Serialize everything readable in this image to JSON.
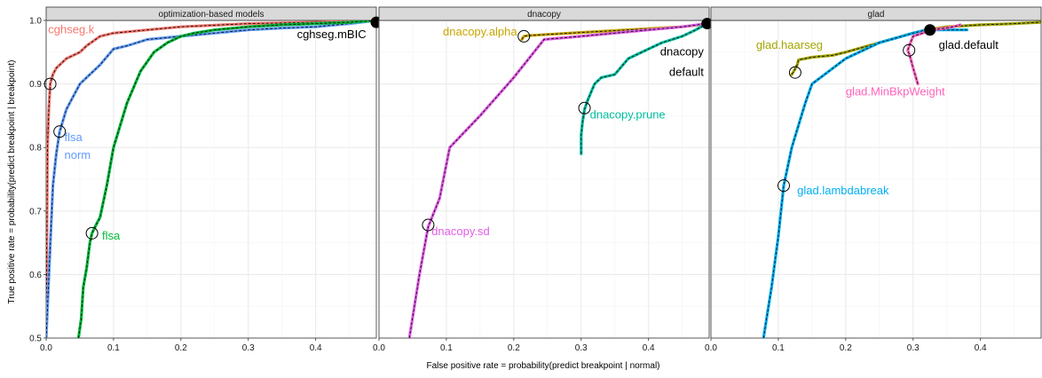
{
  "chart_data": {
    "type": "line",
    "xlabel": "False positive rate = probability(predict breakpoint | normal)",
    "ylabel": "True positive rate = probability(predict breakpoint | breakpoint)",
    "xlim": [
      0,
      0.49
    ],
    "ylim": [
      0.5,
      1.0
    ],
    "x_ticks": [
      "0.0",
      "0.1",
      "0.2",
      "0.3",
      "0.4"
    ],
    "y_ticks": [
      "0.5",
      "0.6",
      "0.7",
      "0.8",
      "0.9",
      "1.0"
    ],
    "grid": true,
    "background_color": "#ffffff",
    "grid_color": "#ebebeb",
    "strip_color": "#d9d9d9",
    "panels": [
      {
        "title": "optimization-based models",
        "series": [
          {
            "label": "cghseg.k",
            "color": "#f8766d",
            "x": [
              0.0,
              0.002,
              0.004,
              0.006,
              0.01,
              0.015,
              0.02,
              0.03,
              0.04,
              0.05,
              0.06,
              0.08,
              0.1,
              0.15,
              0.2,
              0.3,
              0.4,
              0.49
            ],
            "y": [
              0.5,
              0.8,
              0.86,
              0.9,
              0.915,
              0.925,
              0.93,
              0.94,
              0.945,
              0.95,
              0.96,
              0.975,
              0.98,
              0.985,
              0.99,
              0.995,
              0.997,
              1.0
            ],
            "point": {
              "x": 0.006,
              "y": 0.9
            },
            "label_pos": {
              "x": 0.003,
              "y": 0.98
            },
            "label_anchor": "start"
          },
          {
            "label": "flsa\nnorm",
            "color": "#619cff",
            "x": [
              0.0,
              0.005,
              0.01,
              0.015,
              0.02,
              0.03,
              0.04,
              0.05,
              0.06,
              0.08,
              0.1,
              0.12,
              0.15,
              0.2,
              0.25,
              0.3,
              0.35,
              0.4,
              0.45,
              0.49
            ],
            "y": [
              0.5,
              0.62,
              0.74,
              0.79,
              0.825,
              0.86,
              0.88,
              0.9,
              0.91,
              0.93,
              0.955,
              0.96,
              0.97,
              0.975,
              0.98,
              0.985,
              0.988,
              0.99,
              0.995,
              1.0
            ],
            "point": {
              "x": 0.02,
              "y": 0.825
            },
            "label_pos": {
              "x": 0.027,
              "y": 0.81
            },
            "label_anchor": "start"
          },
          {
            "label": "flsa",
            "color": "#00ba38",
            "x": [
              0.048,
              0.052,
              0.055,
              0.06,
              0.065,
              0.068,
              0.075,
              0.08,
              0.09,
              0.1,
              0.12,
              0.14,
              0.16,
              0.18,
              0.2,
              0.22,
              0.25,
              0.3,
              0.35,
              0.4,
              0.45,
              0.49
            ],
            "y": [
              0.5,
              0.53,
              0.58,
              0.61,
              0.65,
              0.665,
              0.68,
              0.69,
              0.74,
              0.8,
              0.87,
              0.92,
              0.95,
              0.965,
              0.975,
              0.98,
              0.985,
              0.99,
              0.993,
              0.995,
              0.997,
              1.0
            ],
            "point": {
              "x": 0.068,
              "y": 0.665
            },
            "label_pos": {
              "x": 0.083,
              "y": 0.655
            },
            "label_anchor": "start"
          }
        ],
        "default_point": {
          "x": 0.49,
          "y": 0.997
        },
        "default_label": "cghseg.mBIC",
        "default_label_pos": {
          "x": 0.475,
          "y": 0.972
        },
        "default_label_anchor": "end"
      },
      {
        "title": "dnacopy",
        "series": [
          {
            "label": "dnacopy.alpha",
            "color": "#c8a600",
            "x": [
              0.212,
              0.215,
              0.22,
              0.25,
              0.3,
              0.35,
              0.4,
              0.45,
              0.475,
              0.487
            ],
            "y": [
              0.97,
              0.975,
              0.976,
              0.978,
              0.981,
              0.984,
              0.987,
              0.99,
              0.993,
              0.995
            ],
            "point": {
              "x": 0.215,
              "y": 0.975
            },
            "label_pos": {
              "x": 0.205,
              "y": 0.976
            },
            "label_anchor": "end"
          },
          {
            "label": "dnacopy.sd",
            "color": "#e35de8",
            "x": [
              0.045,
              0.06,
              0.073,
              0.09,
              0.105,
              0.15,
              0.2,
              0.245,
              0.3,
              0.35,
              0.4,
              0.45,
              0.487
            ],
            "y": [
              0.5,
              0.6,
              0.675,
              0.72,
              0.8,
              0.85,
              0.91,
              0.97,
              0.975,
              0.98,
              0.985,
              0.99,
              0.995
            ],
            "point": {
              "x": 0.073,
              "y": 0.678
            },
            "label_pos": {
              "x": 0.078,
              "y": 0.662
            },
            "label_anchor": "start"
          },
          {
            "label": "dnacopy.prune",
            "color": "#00bfa0",
            "x": [
              0.3,
              0.3,
              0.302,
              0.305,
              0.31,
              0.32,
              0.33,
              0.35,
              0.37,
              0.4,
              0.42,
              0.45,
              0.47,
              0.487
            ],
            "y": [
              0.79,
              0.82,
              0.84,
              0.86,
              0.875,
              0.9,
              0.91,
              0.915,
              0.94,
              0.955,
              0.965,
              0.975,
              0.985,
              0.995
            ],
            "point": {
              "x": 0.305,
              "y": 0.862
            },
            "label_pos": {
              "x": 0.313,
              "y": 0.846
            },
            "label_anchor": "start"
          }
        ],
        "default_point": {
          "x": 0.487,
          "y": 0.995
        },
        "default_label": "dnacopy\ndefault",
        "default_label_pos": {
          "x": 0.482,
          "y": 0.945
        },
        "default_label_anchor": "end"
      },
      {
        "title": "glad",
        "series": [
          {
            "label": "glad.haarseg",
            "color": "#a3a500",
            "x": [
              0.12,
              0.123,
              0.128,
              0.13,
              0.14,
              0.15,
              0.18,
              0.2,
              0.25,
              0.3,
              0.32,
              0.35,
              0.4,
              0.45,
              0.49
            ],
            "y": [
              0.915,
              0.92,
              0.93,
              0.938,
              0.94,
              0.942,
              0.945,
              0.95,
              0.965,
              0.98,
              0.985,
              0.99,
              0.993,
              0.995,
              0.997
            ],
            "point": {
              "x": 0.125,
              "y": 0.918
            },
            "label_pos": {
              "x": 0.067,
              "y": 0.955
            },
            "label_anchor": "start"
          },
          {
            "label": "glad.lambdabreak",
            "color": "#00b0f6",
            "x": [
              0.078,
              0.09,
              0.1,
              0.108,
              0.12,
              0.14,
              0.15,
              0.2,
              0.25,
              0.3,
              0.32,
              0.36,
              0.38
            ],
            "y": [
              0.5,
              0.58,
              0.66,
              0.74,
              0.8,
              0.87,
              0.9,
              0.94,
              0.965,
              0.98,
              0.985,
              0.985,
              0.985
            ],
            "point": {
              "x": 0.108,
              "y": 0.74
            },
            "label_pos": {
              "x": 0.128,
              "y": 0.726
            },
            "label_anchor": "start"
          },
          {
            "label": "glad.MinBkpWeight",
            "color": "#ff62bc",
            "x": [
              0.307,
              0.3,
              0.295,
              0.292,
              0.295,
              0.3,
              0.32,
              0.33,
              0.36,
              0.37
            ],
            "y": [
              0.9,
              0.925,
              0.945,
              0.953,
              0.962,
              0.975,
              0.982,
              0.985,
              0.99,
              0.993
            ],
            "point": {
              "x": 0.294,
              "y": 0.953
            },
            "label_pos": {
              "x": 0.2,
              "y": 0.882
            },
            "label_anchor": "start"
          }
        ],
        "default_point": {
          "x": 0.325,
          "y": 0.985
        },
        "default_label": "glad.default",
        "default_label_pos": {
          "x": 0.338,
          "y": 0.955
        },
        "default_label_anchor": "start"
      }
    ]
  }
}
